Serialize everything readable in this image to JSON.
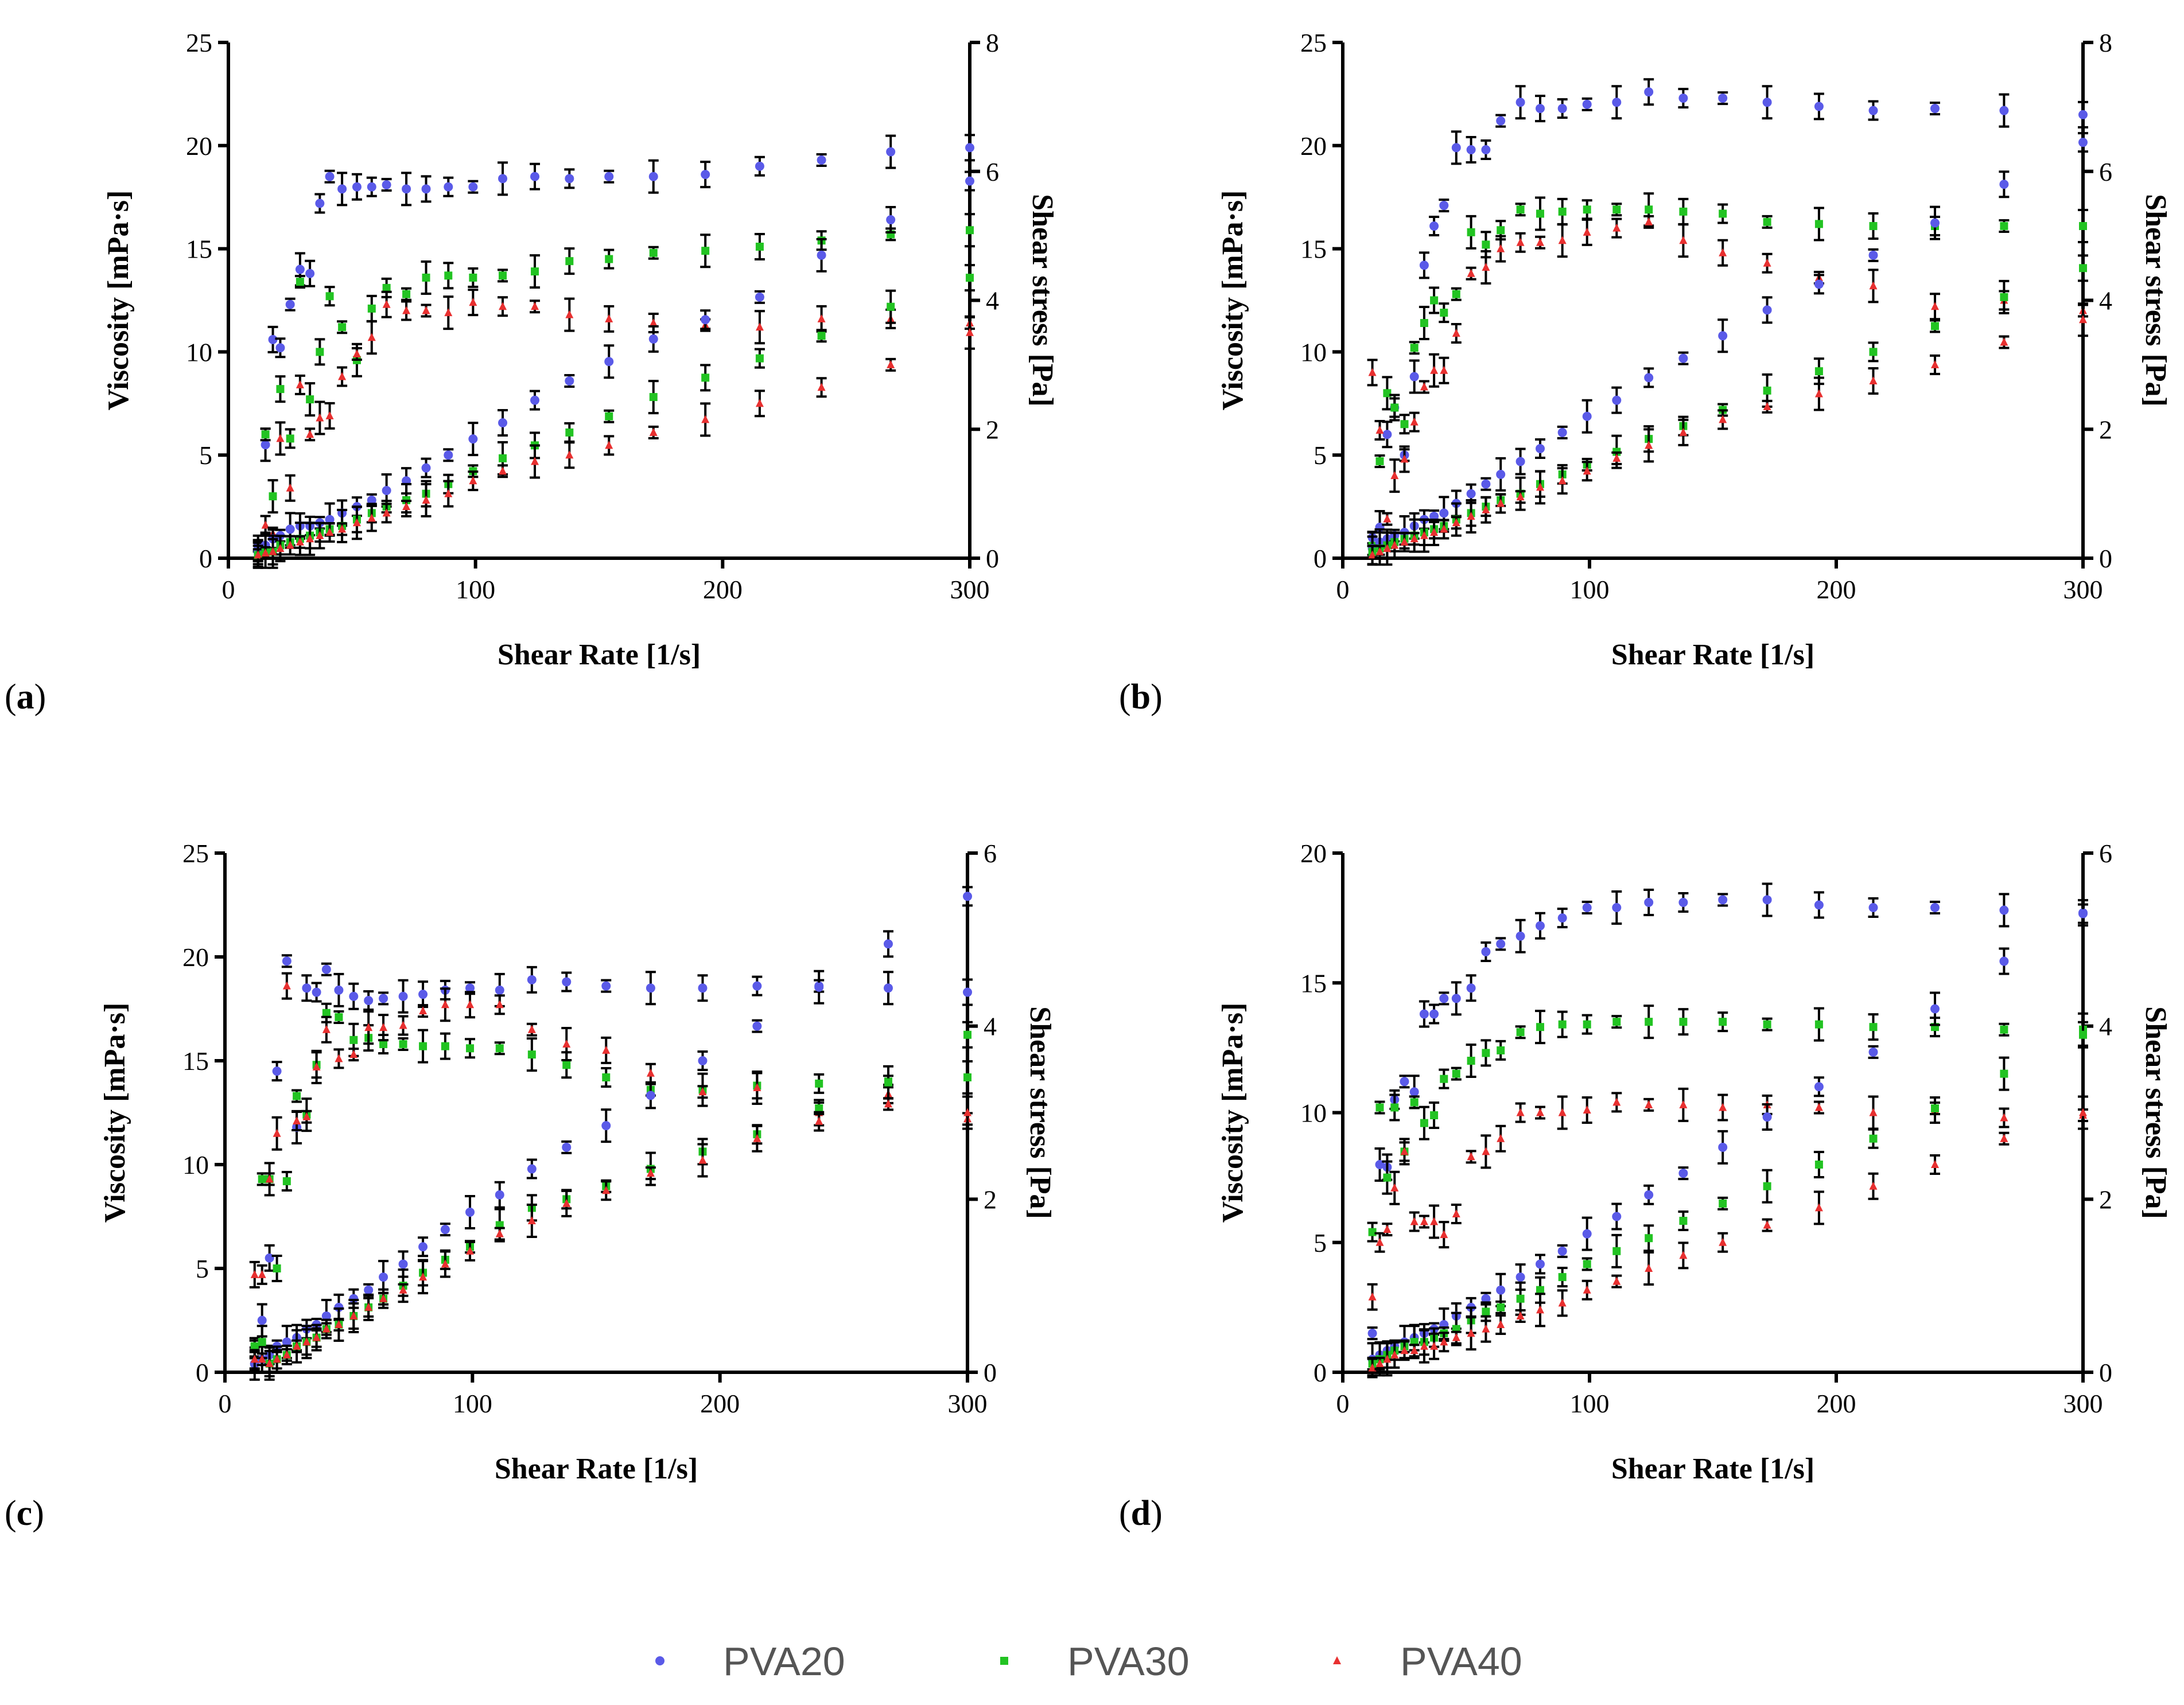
{
  "legend": [
    {
      "name": "PVA20",
      "color": "#5a5ae8",
      "marker": "circle"
    },
    {
      "name": "PVA30",
      "color": "#22c322",
      "marker": "square"
    },
    {
      "name": "PVA40",
      "color": "#e83030",
      "marker": "triangle"
    }
  ],
  "chart_data": [
    {
      "type": "scatter",
      "panel": "a",
      "panel_label": "(a)",
      "xlabel": "Shear Rate [1/s]",
      "ylabel": "Viscosity [mPa·s]",
      "y2label": "Shear stress [Pa]",
      "xlim": [
        0,
        300
      ],
      "ylim": [
        0,
        25
      ],
      "y2lim": [
        0,
        8
      ],
      "xticks": [
        0,
        100,
        200,
        300
      ],
      "yticks": [
        0,
        5,
        10,
        15,
        20,
        25
      ],
      "y2ticks": [
        0,
        2,
        4,
        6,
        8
      ],
      "x": [
        12,
        15,
        18,
        21,
        25,
        29,
        33,
        37,
        41,
        46,
        52,
        58,
        64,
        72,
        80,
        89,
        99,
        111,
        124,
        138,
        154,
        172,
        193,
        215,
        240,
        268,
        300
      ],
      "series": [
        {
          "name": "PVA20",
          "axis": "left",
          "values": [
            0.6,
            5.5,
            10.6,
            10.2,
            12.3,
            14.0,
            13.8,
            17.2,
            18.5,
            17.9,
            18.0,
            18.0,
            18.1,
            17.9,
            17.9,
            18.0,
            18.0,
            18.4,
            18.5,
            18.4,
            18.5,
            18.5,
            18.6,
            19.0,
            19.3,
            19.7,
            19.9
          ]
        },
        {
          "name": "PVA30",
          "axis": "left",
          "values": [
            0.3,
            6.0,
            3.0,
            8.2,
            5.8,
            13.4,
            7.7,
            10.0,
            12.7,
            11.2,
            9.6,
            12.1,
            13.1,
            12.8,
            13.6,
            13.7,
            13.6,
            13.7,
            13.9,
            14.4,
            14.5,
            14.8,
            14.9,
            15.1,
            15.4,
            15.7,
            15.9
          ]
        },
        {
          "name": "PVA40",
          "axis": "left",
          "values": [
            0.2,
            1.6,
            1.2,
            5.8,
            3.4,
            8.4,
            6.0,
            6.8,
            6.9,
            8.8,
            9.9,
            10.7,
            12.3,
            12.0,
            12.0,
            11.9,
            12.4,
            12.2,
            12.2,
            11.8,
            11.6,
            11.4,
            11.3,
            11.2,
            11.6,
            11.6,
            11.4
          ]
        },
        {
          "name": "PVA20 shear stress",
          "axis": "right",
          "values": [
            0.1,
            0.2,
            0.3,
            0.35,
            0.45,
            0.5,
            0.5,
            0.55,
            0.6,
            0.7,
            0.8,
            0.9,
            1.05,
            1.2,
            1.4,
            1.6,
            1.85,
            2.1,
            2.45,
            2.75,
            3.05,
            3.4,
            3.7,
            4.05,
            4.7,
            5.25,
            5.85
          ]
        },
        {
          "name": "PVA30 shear stress",
          "axis": "right",
          "values": [
            0.05,
            0.1,
            0.1,
            0.2,
            0.25,
            0.3,
            0.35,
            0.4,
            0.45,
            0.5,
            0.6,
            0.7,
            0.8,
            0.9,
            1.0,
            1.15,
            1.35,
            1.55,
            1.75,
            1.95,
            2.2,
            2.5,
            2.8,
            3.1,
            3.45,
            3.9,
            4.35
          ]
        },
        {
          "name": "PVA40 shear stress",
          "axis": "right",
          "values": [
            0.05,
            0.08,
            0.1,
            0.15,
            0.2,
            0.25,
            0.3,
            0.35,
            0.4,
            0.45,
            0.55,
            0.62,
            0.7,
            0.8,
            0.9,
            1.0,
            1.2,
            1.35,
            1.5,
            1.6,
            1.75,
            1.95,
            2.15,
            2.4,
            2.65,
            3.0,
            3.5
          ]
        }
      ]
    },
    {
      "type": "scatter",
      "panel": "b",
      "panel_label": "(b)",
      "xlabel": "Shear Rate [1/s]",
      "ylabel": "Viscosity [mPa·s]",
      "y2label": "Shear stress [Pa]",
      "xlim": [
        0,
        300
      ],
      "ylim": [
        0,
        25
      ],
      "y2lim": [
        0,
        8
      ],
      "xticks": [
        0,
        100,
        200,
        300
      ],
      "yticks": [
        0,
        5,
        10,
        15,
        20,
        25
      ],
      "y2ticks": [
        0,
        2,
        4,
        6,
        8
      ],
      "x": [
        12,
        15,
        18,
        21,
        25,
        29,
        33,
        37,
        41,
        46,
        52,
        58,
        64,
        72,
        80,
        89,
        99,
        111,
        124,
        138,
        154,
        172,
        193,
        215,
        240,
        268,
        300
      ],
      "series": [
        {
          "name": "PVA20",
          "axis": "left",
          "values": [
            1.0,
            1.5,
            6.0,
            7.3,
            5.0,
            8.8,
            14.2,
            16.1,
            17.1,
            19.9,
            19.8,
            19.8,
            21.2,
            22.1,
            21.8,
            21.8,
            22.0,
            22.1,
            22.6,
            22.3,
            22.3,
            22.1,
            21.9,
            21.7,
            21.8,
            21.7,
            21.5
          ]
        },
        {
          "name": "PVA30",
          "axis": "left",
          "values": [
            0.6,
            4.7,
            8.0,
            7.3,
            6.5,
            10.2,
            11.4,
            12.5,
            11.9,
            12.8,
            15.8,
            15.2,
            15.9,
            16.9,
            16.7,
            16.8,
            16.9,
            16.9,
            16.9,
            16.8,
            16.7,
            16.3,
            16.2,
            16.1,
            16.1,
            16.1,
            16.1
          ]
        },
        {
          "name": "PVA40",
          "axis": "left",
          "values": [
            9.0,
            6.2,
            1.9,
            4.0,
            4.8,
            6.6,
            8.3,
            9.1,
            9.1,
            10.9,
            13.8,
            14.1,
            15.0,
            15.3,
            15.3,
            15.4,
            15.8,
            16.0,
            16.3,
            15.4,
            14.8,
            14.3,
            13.6,
            13.2,
            12.2,
            12.5,
            12.0
          ]
        },
        {
          "name": "PVA20 shear stress",
          "axis": "right",
          "values": [
            0.15,
            0.25,
            0.3,
            0.35,
            0.4,
            0.5,
            0.6,
            0.65,
            0.7,
            0.85,
            1.0,
            1.15,
            1.3,
            1.5,
            1.7,
            1.95,
            2.2,
            2.45,
            2.8,
            3.1,
            3.45,
            3.85,
            4.25,
            4.7,
            5.2,
            5.8,
            6.45
          ]
        },
        {
          "name": "PVA30 shear stress",
          "axis": "right",
          "values": [
            0.1,
            0.15,
            0.2,
            0.25,
            0.3,
            0.35,
            0.4,
            0.45,
            0.5,
            0.6,
            0.7,
            0.8,
            0.9,
            1.0,
            1.15,
            1.3,
            1.45,
            1.65,
            1.85,
            2.05,
            2.3,
            2.6,
            2.9,
            3.2,
            3.6,
            4.05,
            4.5
          ]
        },
        {
          "name": "PVA40 shear stress",
          "axis": "right",
          "values": [
            0.05,
            0.1,
            0.15,
            0.2,
            0.25,
            0.3,
            0.35,
            0.4,
            0.45,
            0.55,
            0.65,
            0.75,
            0.85,
            0.95,
            1.1,
            1.2,
            1.35,
            1.55,
            1.75,
            1.95,
            2.15,
            2.35,
            2.55,
            2.75,
            3.0,
            3.35,
            3.7
          ]
        }
      ]
    },
    {
      "type": "scatter",
      "panel": "c",
      "panel_label": "(c)",
      "xlabel": "Shear Rate [1/s]",
      "ylabel": "Viscosity [mPa·s]",
      "y2label": "Shear stress [Pa]",
      "xlim": [
        0,
        300
      ],
      "ylim": [
        0,
        25
      ],
      "y2lim": [
        0,
        6
      ],
      "xticks": [
        0,
        100,
        200,
        300
      ],
      "yticks": [
        0,
        5,
        10,
        15,
        20,
        25
      ],
      "y2ticks": [
        0,
        2,
        4,
        6
      ],
      "x": [
        12,
        15,
        18,
        21,
        25,
        29,
        33,
        37,
        41,
        46,
        52,
        58,
        64,
        72,
        80,
        89,
        99,
        111,
        124,
        138,
        154,
        172,
        193,
        215,
        240,
        268,
        300
      ],
      "series": [
        {
          "name": "PVA20",
          "axis": "left",
          "values": [
            0.4,
            2.5,
            5.5,
            14.5,
            19.8,
            11.8,
            18.5,
            18.3,
            19.4,
            18.4,
            18.1,
            17.9,
            18.0,
            18.1,
            18.2,
            18.4,
            18.5,
            18.4,
            18.9,
            18.8,
            18.6,
            18.5,
            18.5,
            18.6,
            18.6,
            18.5,
            18.3
          ]
        },
        {
          "name": "PVA30",
          "axis": "left",
          "values": [
            1.2,
            9.3,
            9.3,
            5.0,
            9.2,
            13.3,
            12.4,
            14.8,
            17.3,
            17.1,
            16.0,
            16.1,
            15.8,
            15.8,
            15.7,
            15.7,
            15.6,
            15.6,
            15.3,
            14.8,
            14.2,
            13.6,
            13.6,
            13.8,
            13.9,
            14.0,
            14.2
          ]
        },
        {
          "name": "PVA40",
          "axis": "left",
          "values": [
            4.7,
            4.7,
            9.3,
            11.5,
            18.6,
            12.1,
            12.3,
            14.7,
            16.5,
            15.1,
            15.3,
            16.6,
            16.6,
            16.7,
            17.4,
            17.7,
            17.7,
            17.7,
            16.5,
            15.8,
            15.5,
            14.4,
            13.5,
            13.7,
            12.5,
            13.4,
            12.2
          ]
        },
        {
          "name": "PVA20 shear stress",
          "axis": "right",
          "values": [
            0.1,
            0.15,
            0.2,
            0.3,
            0.35,
            0.4,
            0.5,
            0.55,
            0.65,
            0.75,
            0.85,
            0.95,
            1.1,
            1.25,
            1.45,
            1.65,
            1.85,
            2.05,
            2.35,
            2.6,
            2.85,
            3.2,
            3.6,
            4.0,
            4.45,
            4.95,
            5.5
          ]
        },
        {
          "name": "PVA30 shear stress",
          "axis": "right",
          "values": [
            0.3,
            0.35,
            0.1,
            0.15,
            0.2,
            0.3,
            0.35,
            0.4,
            0.5,
            0.55,
            0.65,
            0.75,
            0.85,
            1.0,
            1.15,
            1.3,
            1.45,
            1.7,
            1.9,
            2.0,
            2.15,
            2.35,
            2.55,
            2.75,
            3.05,
            3.35,
            3.9
          ]
        },
        {
          "name": "PVA40 shear stress",
          "axis": "right",
          "values": [
            0.15,
            0.15,
            0.1,
            0.15,
            0.2,
            0.3,
            0.35,
            0.4,
            0.5,
            0.55,
            0.65,
            0.75,
            0.85,
            0.95,
            1.1,
            1.25,
            1.4,
            1.6,
            1.75,
            1.95,
            2.1,
            2.3,
            2.45,
            2.7,
            2.9,
            3.1,
            3.0
          ]
        }
      ]
    },
    {
      "type": "scatter",
      "panel": "d",
      "panel_label": "(d)",
      "xlabel": "Shear Rate [1/s]",
      "ylabel": "Viscosity [mPa·s]",
      "y2label": "Shear stress [Pa]",
      "xlim": [
        0,
        300
      ],
      "ylim": [
        0,
        20
      ],
      "y2lim": [
        0,
        6
      ],
      "xticks": [
        0,
        100,
        200,
        300
      ],
      "yticks": [
        0,
        5,
        10,
        15,
        20
      ],
      "y2ticks": [
        0,
        2,
        4,
        6
      ],
      "x": [
        12,
        15,
        18,
        21,
        25,
        29,
        33,
        37,
        41,
        46,
        52,
        58,
        64,
        72,
        80,
        89,
        99,
        111,
        124,
        138,
        154,
        172,
        193,
        215,
        240,
        268,
        300
      ],
      "series": [
        {
          "name": "PVA20",
          "axis": "left",
          "values": [
            1.5,
            8.0,
            7.9,
            10.5,
            11.2,
            10.8,
            13.8,
            13.8,
            14.4,
            14.4,
            14.8,
            16.2,
            16.5,
            16.8,
            17.2,
            17.5,
            17.9,
            17.9,
            18.1,
            18.1,
            18.2,
            18.2,
            18.0,
            17.9,
            17.9,
            17.8,
            17.7
          ]
        },
        {
          "name": "PVA30",
          "axis": "left",
          "values": [
            5.4,
            10.2,
            7.5,
            10.2,
            8.5,
            10.4,
            9.6,
            9.9,
            11.3,
            11.5,
            12.0,
            12.3,
            12.4,
            13.1,
            13.3,
            13.4,
            13.4,
            13.5,
            13.5,
            13.5,
            13.5,
            13.4,
            13.4,
            13.3,
            13.3,
            13.2,
            13.2
          ]
        },
        {
          "name": "PVA40",
          "axis": "left",
          "values": [
            2.9,
            5.0,
            5.5,
            7.1,
            8.5,
            5.8,
            5.8,
            5.8,
            5.3,
            6.1,
            8.3,
            8.5,
            9.0,
            10.0,
            10.0,
            10.0,
            10.1,
            10.4,
            10.3,
            10.3,
            10.2,
            10.3,
            10.2,
            10.0,
            10.1,
            9.8,
            9.9
          ]
        },
        {
          "name": "PVA20 shear stress",
          "axis": "right",
          "values": [
            0.15,
            0.2,
            0.25,
            0.3,
            0.35,
            0.4,
            0.45,
            0.5,
            0.55,
            0.65,
            0.75,
            0.85,
            0.95,
            1.1,
            1.25,
            1.4,
            1.6,
            1.8,
            2.05,
            2.3,
            2.6,
            2.95,
            3.3,
            3.7,
            4.2,
            4.75,
            5.3
          ]
        },
        {
          "name": "PVA30 shear stress",
          "axis": "right",
          "values": [
            0.1,
            0.15,
            0.2,
            0.25,
            0.3,
            0.35,
            0.35,
            0.4,
            0.45,
            0.5,
            0.6,
            0.7,
            0.75,
            0.85,
            0.95,
            1.1,
            1.25,
            1.4,
            1.55,
            1.75,
            1.95,
            2.15,
            2.4,
            2.7,
            3.05,
            3.45,
            3.9
          ]
        },
        {
          "name": "PVA40 shear stress",
          "axis": "right",
          "values": [
            0.05,
            0.1,
            0.15,
            0.2,
            0.25,
            0.25,
            0.3,
            0.3,
            0.35,
            0.4,
            0.45,
            0.5,
            0.55,
            0.65,
            0.72,
            0.8,
            0.95,
            1.05,
            1.2,
            1.35,
            1.5,
            1.7,
            1.9,
            2.15,
            2.4,
            2.7,
            3.0
          ]
        }
      ]
    }
  ]
}
